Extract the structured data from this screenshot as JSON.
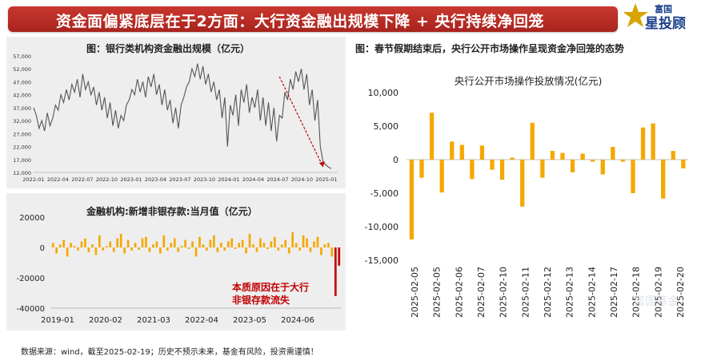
{
  "header": {
    "title": "资金面偏紧底层在于2方面：大行资金融出规模下降 + 央行持续净回笼",
    "logo_top": "富国",
    "logo_main": "星投顾",
    "watermark": "富国基金"
  },
  "colors": {
    "banner": "#b8292a",
    "bar": "#f5a800",
    "line": "#555555",
    "highlight": "#c00000"
  },
  "left_top": {
    "title": "图：银行类机构资金融出规模（亿元）"
  },
  "left_bottom": {
    "title": "金融机构:新增非银存款:当月值（亿元）",
    "annotation_line1": "本质原因在于大行",
    "annotation_line2": "非银存款流失"
  },
  "right": {
    "title": "图：春节假期结束后，央行公开市场操作呈现资金净回笼的态势"
  },
  "footer": {
    "text": "数据来源：wind，截至2025-02-19；历史不预示未来，基金有风险，投资需谨慎！"
  },
  "chart_data": [
    {
      "type": "line",
      "title": "图：银行类机构资金融出规模（亿元）",
      "ylim": [
        12000,
        57000
      ],
      "yticks": [
        12000,
        17000,
        22000,
        27000,
        32000,
        37000,
        42000,
        47000,
        52000,
        57000
      ],
      "xticks": [
        "2022-01",
        "2022-04",
        "2022-07",
        "2022-10",
        "2023-01",
        "2023-04",
        "2023-07",
        "2023-10",
        "2024-01",
        "2024-04",
        "2024-07",
        "2024-10",
        "2025-01"
      ],
      "series": [
        {
          "x_start": "2022-01",
          "x_end": "2025-02",
          "values": [
            37000,
            34000,
            29000,
            32000,
            28000,
            35000,
            30000,
            33000,
            38000,
            36000,
            42000,
            39000,
            44000,
            40000,
            46000,
            43000,
            48000,
            41000,
            50000,
            44000,
            47000,
            42000,
            45000,
            38000,
            43000,
            36000,
            41000,
            33000,
            39000,
            30000,
            36000,
            29000,
            34000,
            32000,
            38000,
            40000,
            44000,
            42000,
            48000,
            43000,
            47000,
            41000,
            49000,
            45000,
            50000,
            42000,
            46000,
            38000,
            44000,
            36000,
            40000,
            31000,
            37000,
            29000,
            38000,
            41000,
            45000,
            47000,
            52000,
            49000,
            54000,
            48000,
            53000,
            46000,
            50000,
            43000,
            47000,
            40000,
            44000,
            33000,
            41000,
            22000,
            38000,
            34000,
            42000,
            30000,
            44000,
            39000,
            46000,
            35000,
            41000,
            37000,
            44000,
            32000,
            41000,
            30000,
            39000,
            28000,
            37000,
            24000,
            34000,
            33000,
            43000,
            40000,
            48000,
            44000,
            51000,
            47000,
            52000,
            44000,
            50000,
            38000,
            44000,
            32000,
            40000,
            22000,
            16000,
            15000,
            14000,
            13500
          ]
        }
      ]
    },
    {
      "type": "bar",
      "title": "金融机构:新增非银存款:当月值（亿元）",
      "ylim": [
        -40000,
        20000
      ],
      "yticks": [
        20000,
        0,
        -20000,
        -40000
      ],
      "xticks": [
        "2019-01",
        "2020-02",
        "2021-03",
        "2022-04",
        "2023-05",
        "2024-06"
      ],
      "series": [
        {
          "x_start": "2019-01",
          "x_end": "2025-01",
          "values": [
            3000,
            -4000,
            2000,
            5000,
            -6000,
            3000,
            1000,
            -2000,
            4000,
            6000,
            -3000,
            2000,
            -5000,
            8000,
            -2000,
            1000,
            4000,
            -3000,
            6000,
            9000,
            -4000,
            5000,
            -2000,
            3000,
            -1500,
            6000,
            7000,
            -3000,
            2000,
            4000,
            -4000,
            8000,
            -2000,
            3000,
            6000,
            -3000,
            1000,
            5000,
            -1000,
            4000,
            -6000,
            7000,
            2000,
            -2000,
            5000,
            8000,
            -3000,
            3000,
            -2000,
            4000,
            6000,
            -1000,
            3000,
            5000,
            -4000,
            9000,
            2000,
            -3000,
            6000,
            3000,
            -1000,
            4000,
            7000,
            -2000,
            2000,
            5000,
            -4000,
            10000,
            3000,
            -2000,
            8000,
            6000,
            -3000,
            4000,
            7000,
            -5000,
            2000,
            3000,
            -6000,
            -32000,
            -12000
          ]
        }
      ]
    },
    {
      "type": "bar",
      "title": "央行公开市场操作投放情况(亿元)",
      "ylim": [
        -15000,
        10000
      ],
      "yticks": [
        10000,
        5000,
        0,
        -5000,
        -10000,
        -15000
      ],
      "xticks": [
        "2025-02-05",
        "2025-02-05",
        "2025-02-06",
        "2025-02-07",
        "2025-02-10",
        "2025-02-11",
        "2025-02-12",
        "2025-02-13",
        "2025-02-14",
        "2025-02-17",
        "2025-02-18",
        "2025-02-19",
        "2025-02-20"
      ],
      "series": [
        {
          "name": "央行公开市场操作投放情况(亿元)",
          "values": [
            -11900,
            -2700,
            7000,
            -4900,
            2700,
            2200,
            -2900,
            2100,
            -1500,
            -3000,
            300,
            -7000,
            5500,
            -2700,
            1300,
            1000,
            -1900,
            900,
            -300,
            -2200,
            1900,
            -300,
            -5000,
            4800,
            5400,
            -5800,
            1300,
            -1300
          ]
        }
      ]
    }
  ]
}
